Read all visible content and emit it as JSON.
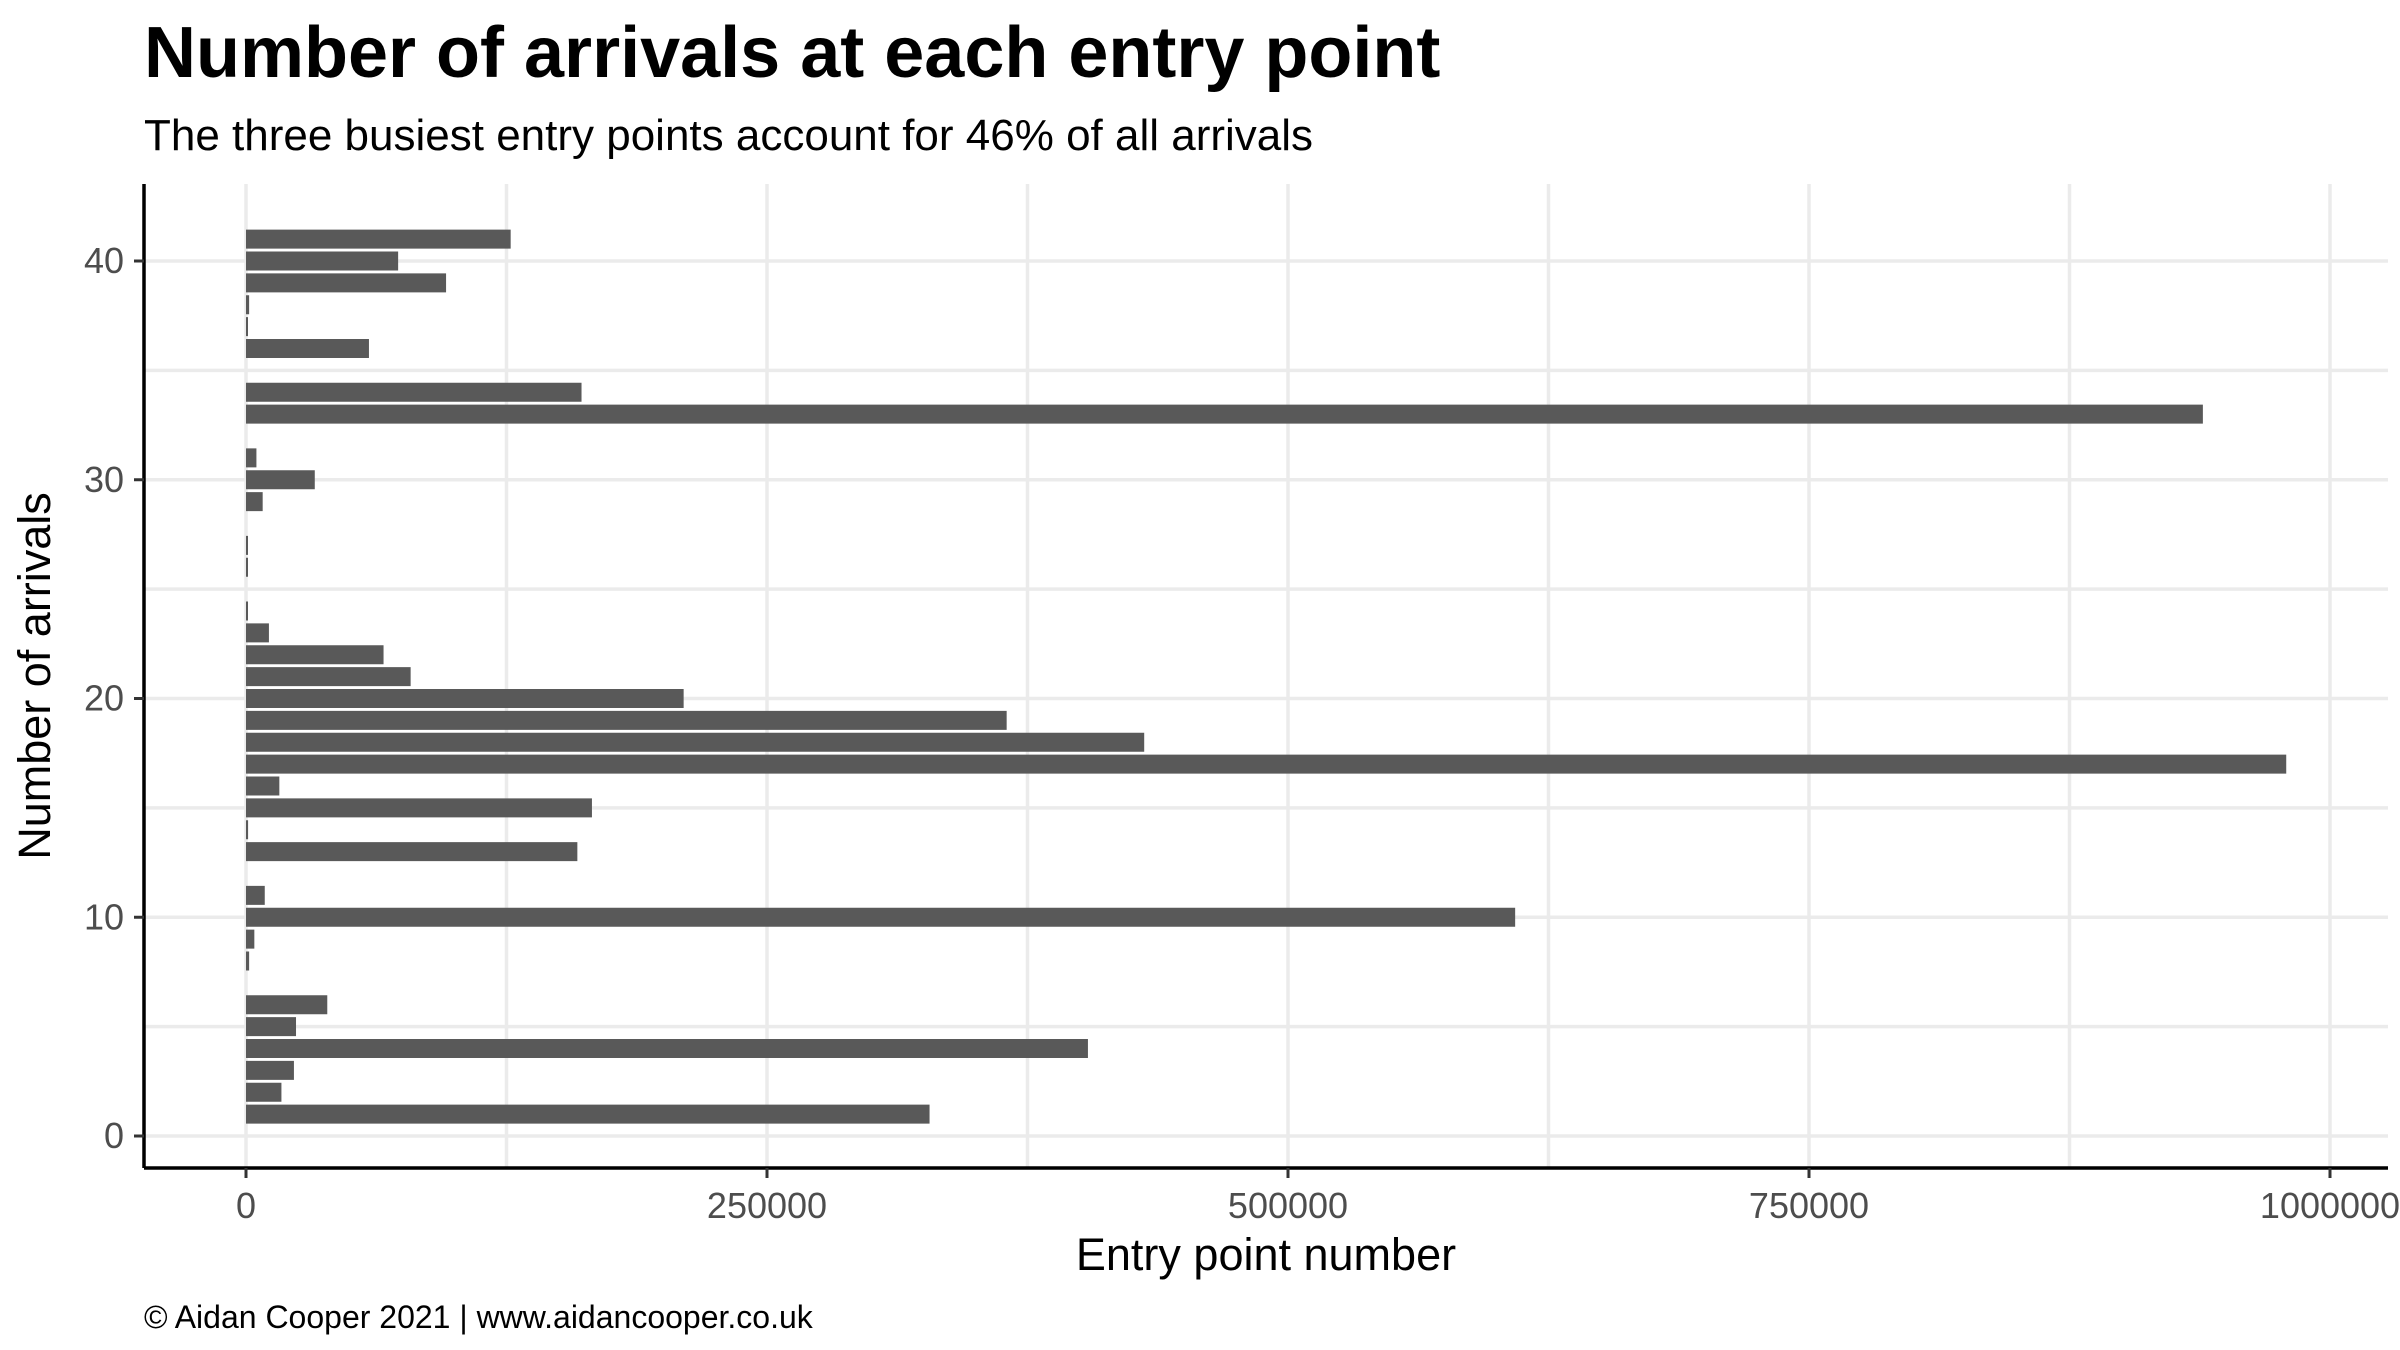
{
  "chart_data": {
    "type": "bar",
    "orientation": "horizontal",
    "title": "Number of arrivals at each entry point",
    "subtitle": "The three busiest entry points account for 46% of all arrivals",
    "xlabel": "Entry point number",
    "ylabel": "Number of arrivals",
    "caption": "© Aidan Cooper 2021 | www.aidancooper.co.uk",
    "xlim": [
      0,
      1000000
    ],
    "x_ticks": [
      0,
      250000,
      500000,
      750000,
      1000000
    ],
    "x_tick_labels": [
      "0",
      "250000",
      "500000",
      "750000",
      "1000000"
    ],
    "ylim": [
      0,
      40
    ],
    "y_ticks": [
      0,
      10,
      20,
      30,
      40
    ],
    "y_tick_labels": [
      "0",
      "10",
      "20",
      "30",
      "40"
    ],
    "grid": true,
    "bar_color": "#595959",
    "bars": [
      {
        "y": 1,
        "value": 328000
      },
      {
        "y": 2,
        "value": 17000
      },
      {
        "y": 3,
        "value": 23000
      },
      {
        "y": 4,
        "value": 404000
      },
      {
        "y": 5,
        "value": 24000
      },
      {
        "y": 6,
        "value": 39000
      },
      {
        "y": 8,
        "value": 1500
      },
      {
        "y": 9,
        "value": 4000
      },
      {
        "y": 10,
        "value": 609000
      },
      {
        "y": 11,
        "value": 9000
      },
      {
        "y": 13,
        "value": 159000
      },
      {
        "y": 14,
        "value": 1000
      },
      {
        "y": 15,
        "value": 166000
      },
      {
        "y": 16,
        "value": 16000
      },
      {
        "y": 17,
        "value": 979000
      },
      {
        "y": 18,
        "value": 431000
      },
      {
        "y": 19,
        "value": 365000
      },
      {
        "y": 20,
        "value": 210000
      },
      {
        "y": 21,
        "value": 79000
      },
      {
        "y": 22,
        "value": 66000
      },
      {
        "y": 23,
        "value": 11000
      },
      {
        "y": 24,
        "value": 500
      },
      {
        "y": 26,
        "value": 500
      },
      {
        "y": 27,
        "value": 500
      },
      {
        "y": 29,
        "value": 8000
      },
      {
        "y": 30,
        "value": 33000
      },
      {
        "y": 31,
        "value": 5000
      },
      {
        "y": 33,
        "value": 939000
      },
      {
        "y": 34,
        "value": 161000
      },
      {
        "y": 36,
        "value": 59000
      },
      {
        "y": 37,
        "value": 500
      },
      {
        "y": 38,
        "value": 1500
      },
      {
        "y": 39,
        "value": 96000
      },
      {
        "y": 40,
        "value": 73000
      },
      {
        "y": 41,
        "value": 127000
      }
    ]
  }
}
